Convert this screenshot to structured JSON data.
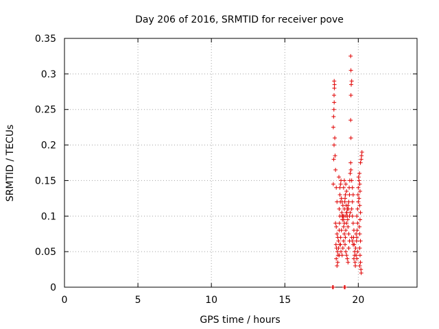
{
  "chart_data": {
    "type": "scatter",
    "title": "Day 206 of 2016, SRMTID for receiver pove",
    "xlabel": "GPS time / hours",
    "ylabel": "SRMTID / TECUs",
    "xlim": [
      0,
      24
    ],
    "ylim": [
      0,
      0.35
    ],
    "x_ticks": [
      "0",
      "5",
      "10",
      "15",
      "20"
    ],
    "y_ticks": [
      "0",
      "0.05",
      "0.1",
      "0.15",
      "0.2",
      "0.25",
      "0.3",
      "0.35"
    ],
    "grid": true,
    "marker": "plus",
    "color": "#e00000",
    "series": [
      {
        "points": [
          [
            18.25,
            0.0
          ],
          [
            18.3,
            0.0
          ],
          [
            19.05,
            0.0
          ],
          [
            19.1,
            0.0
          ],
          [
            18.3,
            0.145
          ],
          [
            18.33,
            0.18
          ],
          [
            18.35,
            0.2
          ],
          [
            18.3,
            0.225
          ],
          [
            18.32,
            0.24
          ],
          [
            18.34,
            0.25
          ],
          [
            18.36,
            0.26
          ],
          [
            18.35,
            0.27
          ],
          [
            18.37,
            0.28
          ],
          [
            18.38,
            0.285
          ],
          [
            18.36,
            0.29
          ],
          [
            18.4,
            0.21
          ],
          [
            18.42,
            0.185
          ],
          [
            18.45,
            0.165
          ],
          [
            18.5,
            0.14
          ],
          [
            18.55,
            0.12
          ],
          [
            18.45,
            0.09
          ],
          [
            18.5,
            0.085
          ],
          [
            18.55,
            0.075
          ],
          [
            18.6,
            0.07
          ],
          [
            18.48,
            0.06
          ],
          [
            18.52,
            0.055
          ],
          [
            18.58,
            0.05
          ],
          [
            18.62,
            0.045
          ],
          [
            18.5,
            0.04
          ],
          [
            18.65,
            0.065
          ],
          [
            18.7,
            0.08
          ],
          [
            18.72,
            0.09
          ],
          [
            18.75,
            0.1
          ],
          [
            18.7,
            0.11
          ],
          [
            18.78,
            0.12
          ],
          [
            18.75,
            0.13
          ],
          [
            18.8,
            0.145
          ],
          [
            18.82,
            0.15
          ],
          [
            18.68,
            0.155
          ],
          [
            18.75,
            0.14
          ],
          [
            18.85,
            0.125
          ],
          [
            18.88,
            0.105
          ],
          [
            18.9,
            0.1
          ],
          [
            18.92,
            0.095
          ],
          [
            18.85,
            0.08
          ],
          [
            18.8,
            0.07
          ],
          [
            18.78,
            0.06
          ],
          [
            18.82,
            0.05
          ],
          [
            18.9,
            0.045
          ],
          [
            18.95,
            0.055
          ],
          [
            19.0,
            0.065
          ],
          [
            19.05,
            0.075
          ],
          [
            19.0,
            0.085
          ],
          [
            19.02,
            0.1
          ],
          [
            19.05,
            0.11
          ],
          [
            19.08,
            0.12
          ],
          [
            19.1,
            0.125
          ],
          [
            19.12,
            0.13
          ],
          [
            19.0,
            0.14
          ],
          [
            19.05,
            0.15
          ],
          [
            19.15,
            0.145
          ],
          [
            19.2,
            0.135
          ],
          [
            19.18,
            0.115
          ],
          [
            19.22,
            0.105
          ],
          [
            19.25,
            0.1
          ],
          [
            19.2,
            0.09
          ],
          [
            19.15,
            0.08
          ],
          [
            19.12,
            0.07
          ],
          [
            19.1,
            0.06
          ],
          [
            19.15,
            0.05
          ],
          [
            19.2,
            0.045
          ],
          [
            19.25,
            0.04
          ],
          [
            19.3,
            0.035
          ],
          [
            19.35,
            0.055
          ],
          [
            19.4,
            0.065
          ],
          [
            19.35,
            0.075
          ],
          [
            19.3,
            0.085
          ],
          [
            19.28,
            0.095
          ],
          [
            19.32,
            0.11
          ],
          [
            19.35,
            0.12
          ],
          [
            19.4,
            0.13
          ],
          [
            19.38,
            0.14
          ],
          [
            19.42,
            0.15
          ],
          [
            19.45,
            0.16
          ],
          [
            19.5,
            0.165
          ],
          [
            19.48,
            0.175
          ],
          [
            19.5,
            0.21
          ],
          [
            19.48,
            0.235
          ],
          [
            19.5,
            0.27
          ],
          [
            19.52,
            0.285
          ],
          [
            19.55,
            0.29
          ],
          [
            19.5,
            0.305
          ],
          [
            19.48,
            0.325
          ],
          [
            19.55,
            0.15
          ],
          [
            19.6,
            0.14
          ],
          [
            19.65,
            0.13
          ],
          [
            19.6,
            0.12
          ],
          [
            19.55,
            0.11
          ],
          [
            19.6,
            0.1
          ],
          [
            19.65,
            0.09
          ],
          [
            19.7,
            0.08
          ],
          [
            19.68,
            0.07
          ],
          [
            19.72,
            0.06
          ],
          [
            19.75,
            0.05
          ],
          [
            19.7,
            0.04
          ],
          [
            19.78,
            0.035
          ],
          [
            19.8,
            0.03
          ],
          [
            19.85,
            0.045
          ],
          [
            19.82,
            0.055
          ],
          [
            19.88,
            0.065
          ],
          [
            19.9,
            0.07
          ],
          [
            19.85,
            0.075
          ],
          [
            19.92,
            0.08
          ],
          [
            19.95,
            0.09
          ],
          [
            19.9,
            0.1
          ],
          [
            19.95,
            0.11
          ],
          [
            20.0,
            0.12
          ],
          [
            19.98,
            0.13
          ],
          [
            20.0,
            0.14
          ],
          [
            20.05,
            0.15
          ],
          [
            20.02,
            0.155
          ],
          [
            20.08,
            0.16
          ],
          [
            20.1,
            0.145
          ],
          [
            20.12,
            0.135
          ],
          [
            20.05,
            0.125
          ],
          [
            20.1,
            0.115
          ],
          [
            20.15,
            0.105
          ],
          [
            20.12,
            0.095
          ],
          [
            20.08,
            0.085
          ],
          [
            20.1,
            0.075
          ],
          [
            20.15,
            0.065
          ],
          [
            20.1,
            0.055
          ],
          [
            20.12,
            0.045
          ],
          [
            20.15,
            0.035
          ],
          [
            20.1,
            0.03
          ],
          [
            20.18,
            0.025
          ],
          [
            20.2,
            0.02
          ],
          [
            20.15,
            0.175
          ],
          [
            20.2,
            0.18
          ],
          [
            20.25,
            0.19
          ],
          [
            20.22,
            0.185
          ],
          [
            19.95,
            0.05
          ],
          [
            19.9,
            0.04
          ],
          [
            18.55,
            0.03
          ],
          [
            18.6,
            0.035
          ],
          [
            18.65,
            0.055
          ],
          [
            18.7,
            0.045
          ],
          [
            18.75,
            0.06
          ],
          [
            18.95,
            0.1
          ],
          [
            19.0,
            0.095
          ],
          [
            19.05,
            0.09
          ],
          [
            18.9,
            0.12
          ],
          [
            18.95,
            0.115
          ],
          [
            19.15,
            0.1
          ],
          [
            19.2,
            0.105
          ],
          [
            19.25,
            0.11
          ],
          [
            19.3,
            0.115
          ],
          [
            19.4,
            0.1
          ],
          [
            19.45,
            0.105
          ],
          [
            19.55,
            0.07
          ],
          [
            19.6,
            0.065
          ],
          [
            19.65,
            0.06
          ],
          [
            19.75,
            0.045
          ]
        ]
      }
    ]
  }
}
